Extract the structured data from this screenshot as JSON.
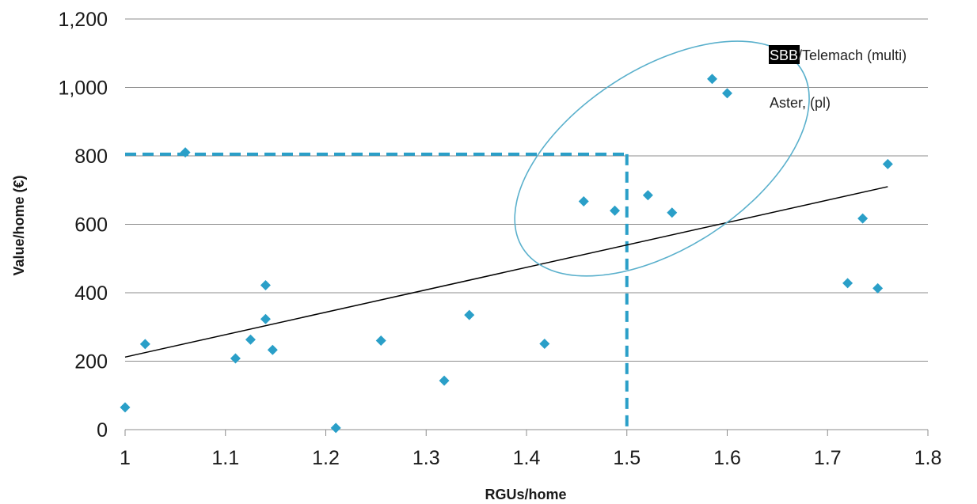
{
  "chart_data": {
    "type": "scatter",
    "xlabel": "RGUs/home",
    "ylabel": "Value/home (€)",
    "xlim": [
      1,
      1.8
    ],
    "ylim": [
      0,
      1200
    ],
    "x_ticks": [
      "1",
      "1.1",
      "1.2",
      "1.3",
      "1.4",
      "1.5",
      "1.6",
      "1.7",
      "1.8"
    ],
    "y_ticks": [
      "0",
      "200",
      "400",
      "600",
      "800",
      "1,000",
      "1,200"
    ],
    "x_tick_values": [
      1,
      1.1,
      1.2,
      1.3,
      1.4,
      1.5,
      1.6,
      1.7,
      1.8
    ],
    "y_tick_values": [
      0,
      200,
      400,
      600,
      800,
      1000,
      1200
    ],
    "grid": {
      "horizontal": true,
      "vertical": false
    },
    "series": [
      {
        "color": "#2a9fc8",
        "marker": "diamond",
        "x": [
          1.0,
          1.02,
          1.06,
          1.11,
          1.125,
          1.14,
          1.14,
          1.147,
          1.21,
          1.255,
          1.318,
          1.343,
          1.418,
          1.457,
          1.488,
          1.521,
          1.545,
          1.585,
          1.6,
          1.72,
          1.735,
          1.75,
          1.76
        ],
        "y": [
          65,
          250,
          810,
          208,
          263,
          422,
          323,
          233,
          5,
          260,
          143,
          335,
          251,
          667,
          640,
          685,
          634,
          1025,
          983,
          428,
          617,
          413,
          776
        ]
      }
    ],
    "trendline": {
      "color": "#000000",
      "x": [
        1.0,
        1.76
      ],
      "y": [
        212,
        710
      ]
    },
    "reference_lines": {
      "color": "#2a9fc8",
      "style": "dashed",
      "x": 1.5,
      "y": 805
    },
    "highlight_ellipse": {
      "color": "#5ab0cc",
      "cx": 1.535,
      "cy": 792,
      "rx": 0.165,
      "ry": 262,
      "rotation_deg": -33
    },
    "annotations": [
      {
        "text_highlight": "SBB",
        "text": "/Telemach (multi)",
        "highlight_bg": "#000000",
        "highlight_fg": "#ffffff"
      },
      {
        "text": "Aster, (pl)"
      }
    ]
  }
}
